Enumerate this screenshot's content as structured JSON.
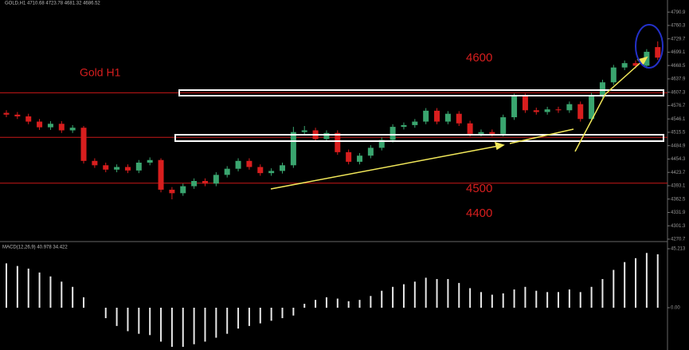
{
  "chart_data": {
    "type": "candlestick",
    "header": "GOLD,H1  4710.68 4723.78 4681.32 4686.52",
    "annotations": [
      "Gold H1",
      "4600",
      "4500",
      "4400"
    ],
    "up_color": "#3aa56f",
    "down_color": "#d81e1e",
    "level_color": "#c81818",
    "levels": [
      4606,
      4504,
      4399
    ],
    "ylim": [
      4267,
      4804
    ],
    "yticks": [
      4790.9,
      4760.3,
      4729.7,
      4699.1,
      4668.5,
      4637.9,
      4607.3,
      4576.7,
      4546.1,
      4515.5,
      4484.9,
      4454.3,
      4423.7,
      4393.1,
      4362.5,
      4331.9,
      4301.3,
      4270.7
    ],
    "series": [
      {
        "name": "GOLD,H1",
        "open": [
          4560,
          4556,
          4552,
          4540,
          4527,
          4535,
          4520,
          4526,
          4450,
          4440,
          4430,
          4436,
          4428,
          4446,
          4452,
          4384,
          4376,
          4392,
          4404,
          4398,
          4418,
          4432,
          4450,
          4436,
          4422,
          4427,
          4440,
          4516,
          4520,
          4500,
          4514,
          4470,
          4448,
          4462,
          4480,
          4498,
          4528,
          4532,
          4540,
          4565,
          4540,
          4558,
          4536,
          4512,
          4516,
          4512,
          4550,
          4598,
          4566,
          4562,
          4568,
          4566,
          4580,
          4546,
          4600,
          4630,
          4664,
          4674,
          4668,
          4710.68
        ],
        "high": [
          4566,
          4562,
          4558,
          4546,
          4541,
          4541,
          4532,
          4530,
          4456,
          4446,
          4442,
          4442,
          4452,
          4458,
          4456,
          4390,
          4398,
          4410,
          4410,
          4424,
          4438,
          4456,
          4456,
          4442,
          4433,
          4446,
          4528,
          4530,
          4526,
          4520,
          4520,
          4476,
          4468,
          4486,
          4504,
          4534,
          4538,
          4546,
          4571,
          4571,
          4564,
          4564,
          4542,
          4522,
          4522,
          4556,
          4604,
          4604,
          4572,
          4574,
          4574,
          4586,
          4586,
          4606,
          4636,
          4670,
          4680,
          4680,
          4706,
          4723.78
        ],
        "low": [
          4550,
          4546,
          4534,
          4521,
          4521,
          4514,
          4514,
          4444,
          4434,
          4424,
          4424,
          4422,
          4422,
          4440,
          4378,
          4362,
          4370,
          4386,
          4392,
          4392,
          4412,
          4426,
          4430,
          4416,
          4416,
          4421,
          4434,
          4510,
          4494,
          4494,
          4464,
          4442,
          4442,
          4456,
          4474,
          4492,
          4522,
          4526,
          4534,
          4534,
          4534,
          4530,
          4506,
          4506,
          4506,
          4506,
          4544,
          4560,
          4556,
          4556,
          4560,
          4560,
          4540,
          4540,
          4594,
          4624,
          4658,
          4662,
          4662,
          4681.32
        ],
        "close": [
          4556,
          4552,
          4540,
          4527,
          4535,
          4520,
          4526,
          4450,
          4440,
          4430,
          4436,
          4428,
          4446,
          4452,
          4384,
          4376,
          4392,
          4404,
          4398,
          4418,
          4432,
          4450,
          4436,
          4422,
          4427,
          4440,
          4516,
          4520,
          4500,
          4514,
          4470,
          4448,
          4462,
          4480,
          4498,
          4528,
          4532,
          4540,
          4565,
          4540,
          4558,
          4536,
          4512,
          4516,
          4512,
          4550,
          4598,
          4566,
          4562,
          4568,
          4566,
          4580,
          4546,
          4600,
          4630,
          4664,
          4674,
          4668,
          4700,
          4686.52
        ]
      }
    ],
    "macd": {
      "label": "MACD(12,26,9) 40.978 34.422",
      "color": "#e8e8e8",
      "ylim": [
        -31.2,
        49.5
      ],
      "yticks": [
        45.213,
        {
          "value": 0,
          "label": "0.00"
        }
      ],
      "values": [
        34,
        32,
        30,
        27,
        24,
        20,
        16,
        8,
        0,
        -8,
        -14,
        -18,
        -20,
        -21,
        -26,
        -30,
        -30,
        -28,
        -26,
        -23,
        -20,
        -16,
        -14,
        -12,
        -10,
        -8,
        -6,
        3,
        6,
        8,
        7,
        5,
        6,
        9,
        13,
        16,
        18,
        20,
        23,
        22,
        22,
        19,
        15,
        12,
        10,
        11,
        14,
        16,
        13,
        12,
        12,
        14,
        12,
        16,
        22,
        29,
        35,
        38,
        42,
        40.978
      ]
    }
  }
}
